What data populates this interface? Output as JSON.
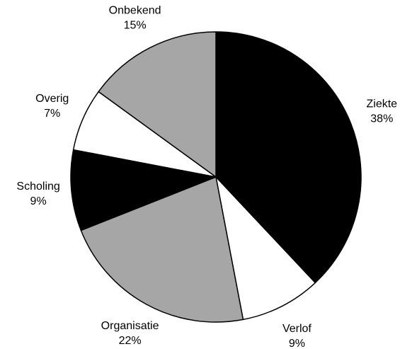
{
  "chart_data": {
    "type": "pie",
    "categories": [
      "Ziekte",
      "Verlof",
      "Organisatie",
      "Scholing",
      "Overig",
      "Onbekend"
    ],
    "values": [
      38,
      9,
      22,
      9,
      7,
      15
    ],
    "value_labels": [
      "38%",
      "9%",
      "22%",
      "9%",
      "7%",
      "15%"
    ],
    "colors": [
      "#000000",
      "#ffffff",
      "#a6a6a6",
      "#000000",
      "#ffffff",
      "#a6a6a6"
    ]
  }
}
